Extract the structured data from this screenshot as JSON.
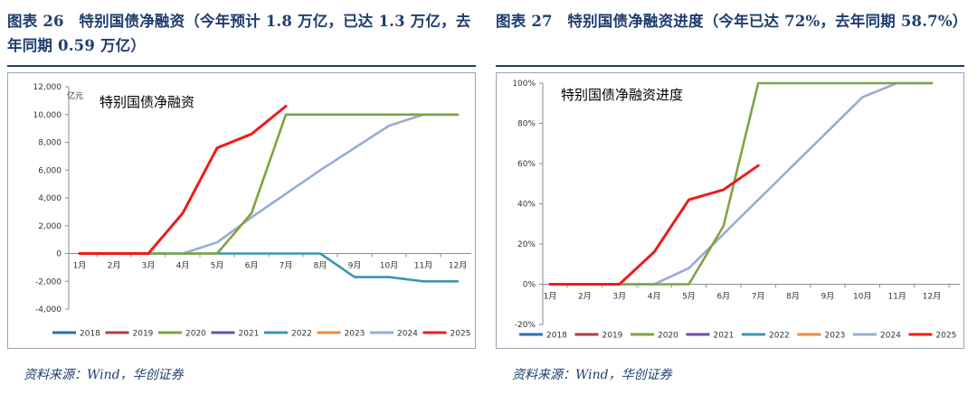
{
  "figures": [
    {
      "title": "图表 26　特别国债净融资（今年预计 1.8 万亿，已达 1.3 万亿，去年同期 0.59 万亿）",
      "source": "资料来源：Wind，华创证券"
    },
    {
      "title": "图表 27　特别国债净融资进度（今年已达 72%，去年同期 58.7%）",
      "source": "资料来源：Wind，华创证券"
    }
  ],
  "chart_data": [
    {
      "type": "line",
      "title": "特别国债净融资",
      "unit_label": "亿元",
      "categories": [
        "1月",
        "2月",
        "3月",
        "4月",
        "5月",
        "6月",
        "7月",
        "8月",
        "9月",
        "10月",
        "11月",
        "12月"
      ],
      "ylim": [
        -4000,
        12000
      ],
      "yticks": [
        -4000,
        -2000,
        0,
        2000,
        4000,
        6000,
        8000,
        10000,
        12000
      ],
      "ytick_labels": [
        "-4,000",
        "-2,000",
        "0",
        "2,000",
        "4,000",
        "6,000",
        "8,000",
        "10,000",
        "12,000"
      ],
      "grid": false,
      "legend_position": "bottom",
      "series": [
        {
          "name": "2018",
          "color": "#2e6db4",
          "values": [
            null,
            null,
            null,
            null,
            null,
            null,
            null,
            null,
            null,
            null,
            null,
            null
          ]
        },
        {
          "name": "2019",
          "color": "#b23b3b",
          "values": [
            null,
            null,
            null,
            null,
            null,
            null,
            null,
            null,
            null,
            null,
            null,
            null
          ]
        },
        {
          "name": "2020",
          "color": "#7fa341",
          "values": [
            0,
            0,
            0,
            0,
            0,
            2900,
            10000,
            10000,
            10000,
            10000,
            10000,
            10000
          ]
        },
        {
          "name": "2021",
          "color": "#6d4ea0",
          "values": [
            null,
            null,
            null,
            null,
            null,
            null,
            null,
            null,
            null,
            null,
            null,
            null
          ]
        },
        {
          "name": "2022",
          "color": "#3a97ad",
          "values": [
            0,
            0,
            0,
            0,
            0,
            0,
            0,
            0,
            -1700,
            -1700,
            -2000,
            -2000
          ]
        },
        {
          "name": "2023",
          "color": "#ee8a3a",
          "values": [
            null,
            null,
            null,
            null,
            null,
            null,
            null,
            null,
            null,
            null,
            null,
            null
          ]
        },
        {
          "name": "2024",
          "color": "#97acd6",
          "values": [
            0,
            0,
            0,
            0,
            800,
            2600,
            4300,
            6000,
            7600,
            9200,
            10000,
            10000
          ]
        },
        {
          "name": "2025",
          "color": "#ee1c1c",
          "values": [
            0,
            0,
            0,
            2900,
            7600,
            8600,
            10600,
            null,
            null,
            null,
            null,
            null
          ]
        }
      ]
    },
    {
      "type": "line",
      "title": "特别国债净融资进度",
      "categories": [
        "1月",
        "2月",
        "3月",
        "4月",
        "5月",
        "6月",
        "7月",
        "8月",
        "9月",
        "10月",
        "11月",
        "12月"
      ],
      "ylim": [
        -20,
        100
      ],
      "yticks": [
        -20,
        0,
        20,
        40,
        60,
        80,
        100
      ],
      "ytick_labels": [
        "-20%",
        "0%",
        "20%",
        "40%",
        "60%",
        "80%",
        "100%"
      ],
      "grid": false,
      "legend_position": "bottom",
      "series": [
        {
          "name": "2018",
          "color": "#2e6db4",
          "values": [
            null,
            null,
            null,
            null,
            null,
            null,
            null,
            null,
            null,
            null,
            null,
            null
          ]
        },
        {
          "name": "2019",
          "color": "#b23b3b",
          "values": [
            null,
            null,
            null,
            null,
            null,
            null,
            null,
            null,
            null,
            null,
            null,
            null
          ]
        },
        {
          "name": "2020",
          "color": "#7fa341",
          "values": [
            0,
            0,
            0,
            0,
            0,
            29,
            100,
            100,
            100,
            100,
            100,
            100
          ]
        },
        {
          "name": "2021",
          "color": "#6d4ea0",
          "values": [
            null,
            null,
            null,
            null,
            null,
            null,
            null,
            null,
            null,
            null,
            null,
            null
          ]
        },
        {
          "name": "2022",
          "color": "#3a97ad",
          "values": [
            null,
            null,
            null,
            null,
            null,
            null,
            null,
            null,
            null,
            null,
            null,
            null
          ]
        },
        {
          "name": "2023",
          "color": "#ee8a3a",
          "values": [
            null,
            null,
            null,
            null,
            null,
            null,
            null,
            null,
            null,
            null,
            null,
            null
          ]
        },
        {
          "name": "2024",
          "color": "#97acd6",
          "values": [
            0,
            0,
            0,
            0,
            8,
            25,
            42,
            59,
            76,
            93,
            100,
            100
          ]
        },
        {
          "name": "2025",
          "color": "#ee1c1c",
          "values": [
            0,
            0,
            0,
            16,
            42,
            47,
            59,
            null,
            null,
            null,
            null,
            null
          ]
        }
      ]
    }
  ]
}
